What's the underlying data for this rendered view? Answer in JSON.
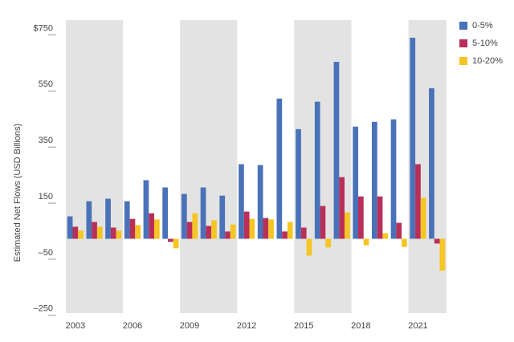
{
  "chart_data": {
    "type": "bar",
    "y_label": "Estimated Net Flows (USD Billions)",
    "categories": [
      "2003",
      null,
      null,
      "2006",
      null,
      null,
      "2009",
      null,
      null,
      "2012",
      null,
      null,
      "2015",
      null,
      null,
      "2018",
      null,
      null,
      "2021",
      null
    ],
    "series": [
      {
        "name": "0-5%",
        "color": "#4a72b8",
        "values": [
          80,
          134,
          143,
          134,
          209,
          183,
          160,
          183,
          154,
          266,
          263,
          500,
          391,
          489,
          631,
          400,
          417,
          426,
          717,
          537
        ]
      },
      {
        "name": "5-10%",
        "color": "#b8305a",
        "values": [
          43,
          60,
          40,
          71,
          91,
          -11,
          60,
          46,
          26,
          97,
          74,
          26,
          40,
          117,
          220,
          151,
          151,
          57,
          266,
          -17
        ]
      },
      {
        "name": "10-20%",
        "color": "#f5c524",
        "values": [
          29,
          43,
          29,
          49,
          69,
          -34,
          91,
          66,
          51,
          71,
          69,
          60,
          -60,
          -31,
          94,
          -23,
          20,
          -29,
          146,
          -114
        ]
      }
    ],
    "ylim": [
      -265,
      780
    ],
    "yticks": [
      {
        "value": -250,
        "label": "–250"
      },
      {
        "value": -50,
        "label": "–50"
      },
      150,
      350,
      550,
      {
        "value": 750,
        "label": "$750"
      }
    ],
    "grid": false,
    "legend": "top-right"
  }
}
